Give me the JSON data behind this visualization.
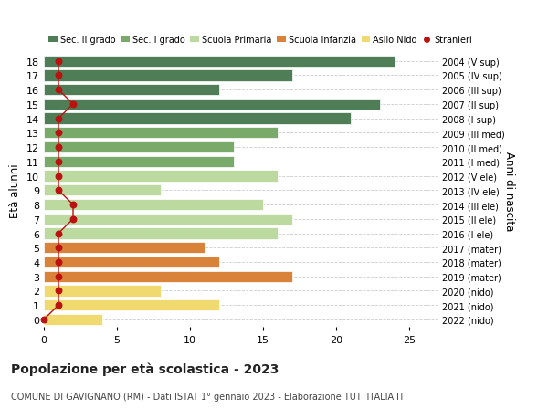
{
  "ages": [
    18,
    17,
    16,
    15,
    14,
    13,
    12,
    11,
    10,
    9,
    8,
    7,
    6,
    5,
    4,
    3,
    2,
    1,
    0
  ],
  "values": [
    24,
    17,
    12,
    23,
    21,
    16,
    13,
    13,
    16,
    8,
    15,
    17,
    16,
    11,
    12,
    17,
    8,
    12,
    4
  ],
  "stranieri_x": [
    1,
    1,
    1,
    2,
    1,
    1,
    1,
    1,
    1,
    1,
    2,
    2,
    1,
    1,
    1,
    1,
    1,
    1,
    0
  ],
  "bar_colors": [
    "#4e7d56",
    "#4e7d56",
    "#4e7d56",
    "#4e7d56",
    "#4e7d56",
    "#7aaa6a",
    "#7aaa6a",
    "#7aaa6a",
    "#bcd9a0",
    "#bcd9a0",
    "#bcd9a0",
    "#bcd9a0",
    "#bcd9a0",
    "#d9823a",
    "#d9823a",
    "#d9823a",
    "#f0d96e",
    "#f0d96e",
    "#f0d96e"
  ],
  "right_labels": [
    "2004 (V sup)",
    "2005 (IV sup)",
    "2006 (III sup)",
    "2007 (II sup)",
    "2008 (I sup)",
    "2009 (III med)",
    "2010 (II med)",
    "2011 (I med)",
    "2012 (V ele)",
    "2013 (IV ele)",
    "2014 (III ele)",
    "2015 (II ele)",
    "2016 (I ele)",
    "2017 (mater)",
    "2018 (mater)",
    "2019 (mater)",
    "2020 (nido)",
    "2021 (nido)",
    "2022 (nido)"
  ],
  "legend_labels": [
    "Sec. II grado",
    "Sec. I grado",
    "Scuola Primaria",
    "Scuola Infanzia",
    "Asilo Nido",
    "Stranieri"
  ],
  "legend_colors": [
    "#4e7d56",
    "#7aaa6a",
    "#bcd9a0",
    "#d9823a",
    "#f0d96e",
    "#bb1111"
  ],
  "ylabel": "Età alunni",
  "right_ylabel": "Anni di nascita",
  "title": "Popolazione per età scolastica - 2023",
  "subtitle": "COMUNE DI GAVIGNANO (RM) - Dati ISTAT 1° gennaio 2023 - Elaborazione TUTTITALIA.IT",
  "xlim": [
    0,
    27
  ],
  "xticks": [
    0,
    5,
    10,
    15,
    20,
    25
  ],
  "dot_color": "#bb1111",
  "line_color": "#bb1111",
  "background_color": "#ffffff",
  "grid_color": "#cccccc"
}
